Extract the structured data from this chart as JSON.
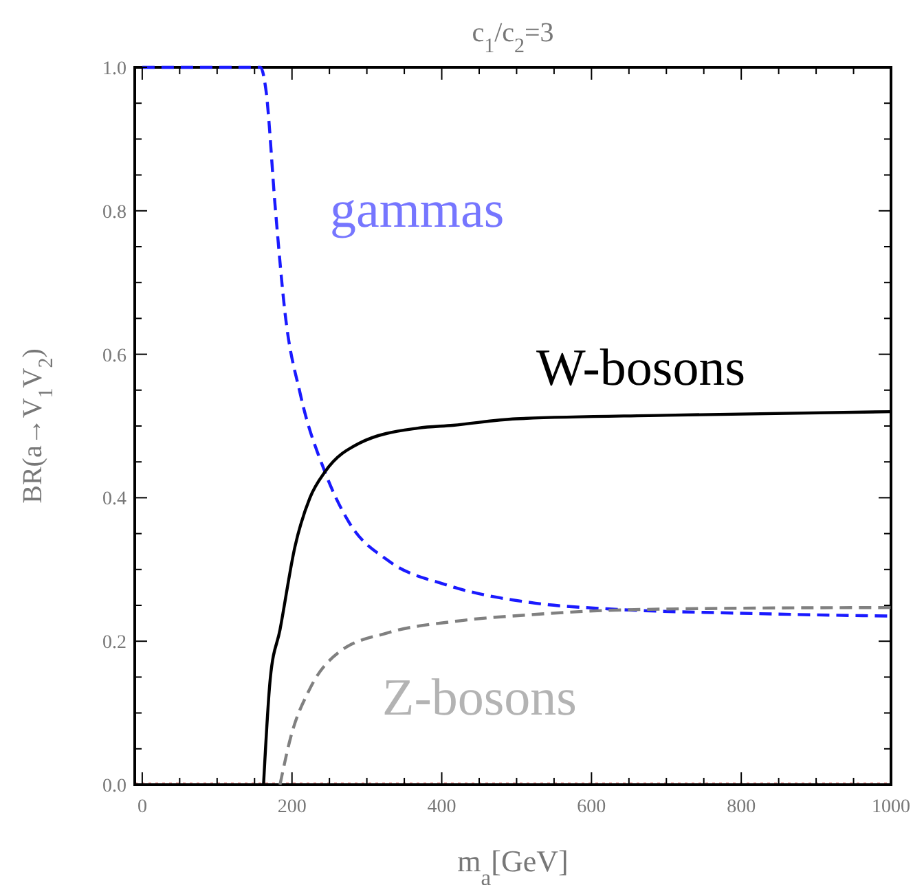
{
  "chart_data": {
    "type": "line",
    "title": "c$_{1}$/c$_{2}$=3",
    "xlabel": "m$_{a}$[GeV]",
    "ylabel": "BR(a→V$_{1}$V$_{2}$)",
    "xlim": [
      -10,
      1000
    ],
    "ylim": [
      0,
      1
    ],
    "xticks": [
      0,
      {
        "value": 50,
        "label": null
      },
      {
        "value": 100,
        "label": null
      },
      {
        "value": 150,
        "label": null
      },
      200,
      {
        "value": 250,
        "label": null
      },
      {
        "value": 300,
        "label": null
      },
      {
        "value": 350,
        "label": null
      },
      400,
      {
        "value": 450,
        "label": null
      },
      {
        "value": 500,
        "label": null
      },
      {
        "value": 550,
        "label": null
      },
      600,
      {
        "value": 650,
        "label": null
      },
      {
        "value": 700,
        "label": null
      },
      {
        "value": 750,
        "label": null
      },
      800,
      {
        "value": 850,
        "label": null
      },
      {
        "value": 900,
        "label": null
      },
      {
        "value": 950,
        "label": null
      },
      1000
    ],
    "yticks": [
      "0.0",
      {
        "value": 0.05,
        "label": null
      },
      {
        "value": 0.1,
        "label": null
      },
      {
        "value": 0.15,
        "label": null
      },
      {
        "value": 0.2,
        "label": "0.2"
      },
      {
        "value": 0.25,
        "label": null
      },
      {
        "value": 0.3,
        "label": null
      },
      {
        "value": 0.35,
        "label": null
      },
      {
        "value": 0.4,
        "label": "0.4"
      },
      {
        "value": 0.45,
        "label": null
      },
      {
        "value": 0.5,
        "label": null
      },
      {
        "value": 0.55,
        "label": null
      },
      {
        "value": 0.6,
        "label": "0.6"
      },
      {
        "value": 0.65,
        "label": null
      },
      {
        "value": 0.7,
        "label": null
      },
      {
        "value": 0.75,
        "label": null
      },
      {
        "value": 0.8,
        "label": "0.8"
      },
      {
        "value": 0.85,
        "label": null
      },
      {
        "value": 0.9,
        "label": null
      },
      {
        "value": 0.95,
        "label": null
      },
      {
        "value": 1,
        "label": "1.0"
      }
    ],
    "grid": false,
    "marker": "none",
    "ref_lines": [
      {
        "axis": "y",
        "value": 0,
        "color": "#f0a0a0",
        "line_style": "dotted"
      }
    ],
    "series": [
      {
        "name": "gammas",
        "color": "#1a1aff",
        "line_style": "dashed",
        "x": [
          0,
          158,
          165,
          178,
          191,
          211,
          244,
          276,
          329,
          408,
          525,
          623,
          800,
          1000
        ],
        "values": [
          1,
          1,
          0.97,
          0.8,
          0.655,
          0.545,
          0.436,
          0.366,
          0.312,
          0.278,
          0.253,
          0.245,
          0.239,
          0.235
        ]
      },
      {
        "name": "W-bosons",
        "color": "#000000",
        "line_style": "solid",
        "x": [
          162,
          171,
          184,
          204,
          224,
          244,
          290,
          368,
          415,
          499,
          700,
          1000
        ],
        "values": [
          0,
          0.148,
          0.216,
          0.332,
          0.4,
          0.436,
          0.476,
          0.497,
          0.501,
          0.51,
          0.515,
          0.52
        ]
      },
      {
        "name": "Z-bosons",
        "color": "#808080",
        "line_style": "dashed",
        "x": [
          184,
          198,
          224,
          263,
          329,
          420,
          520,
          623,
          800,
          1000
        ],
        "values": [
          0,
          0.065,
          0.134,
          0.185,
          0.212,
          0.228,
          0.237,
          0.243,
          0.246,
          0.247
        ]
      }
    ]
  }
}
